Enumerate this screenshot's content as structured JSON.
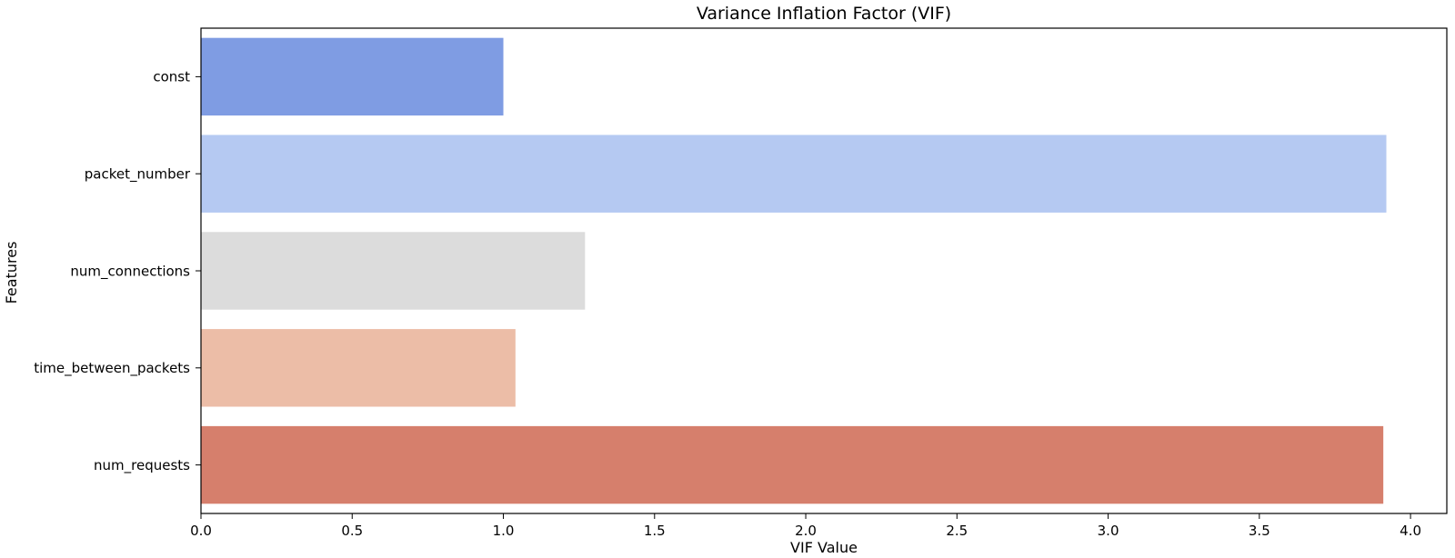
{
  "chart_data": {
    "type": "bar",
    "orientation": "horizontal",
    "title": "Variance Inflation Factor (VIF)",
    "xlabel": "VIF Value",
    "ylabel": "Features",
    "categories": [
      "const",
      "packet_number",
      "num_connections",
      "time_between_packets",
      "num_requests"
    ],
    "values": [
      1.0,
      3.92,
      1.27,
      1.04,
      3.91
    ],
    "colors": [
      "#7f9ce3",
      "#b5c9f2",
      "#dcdcdc",
      "#ecbda7",
      "#d67f6c"
    ],
    "xlim": [
      0,
      4.12
    ],
    "xticks": [
      0.0,
      0.5,
      1.0,
      1.5,
      2.0,
      2.5,
      3.0,
      3.5,
      4.0
    ],
    "xtick_labels": [
      "0.0",
      "0.5",
      "1.0",
      "1.5",
      "2.0",
      "2.5",
      "3.0",
      "3.5",
      "4.0"
    ],
    "grid": false,
    "legend": "none"
  }
}
